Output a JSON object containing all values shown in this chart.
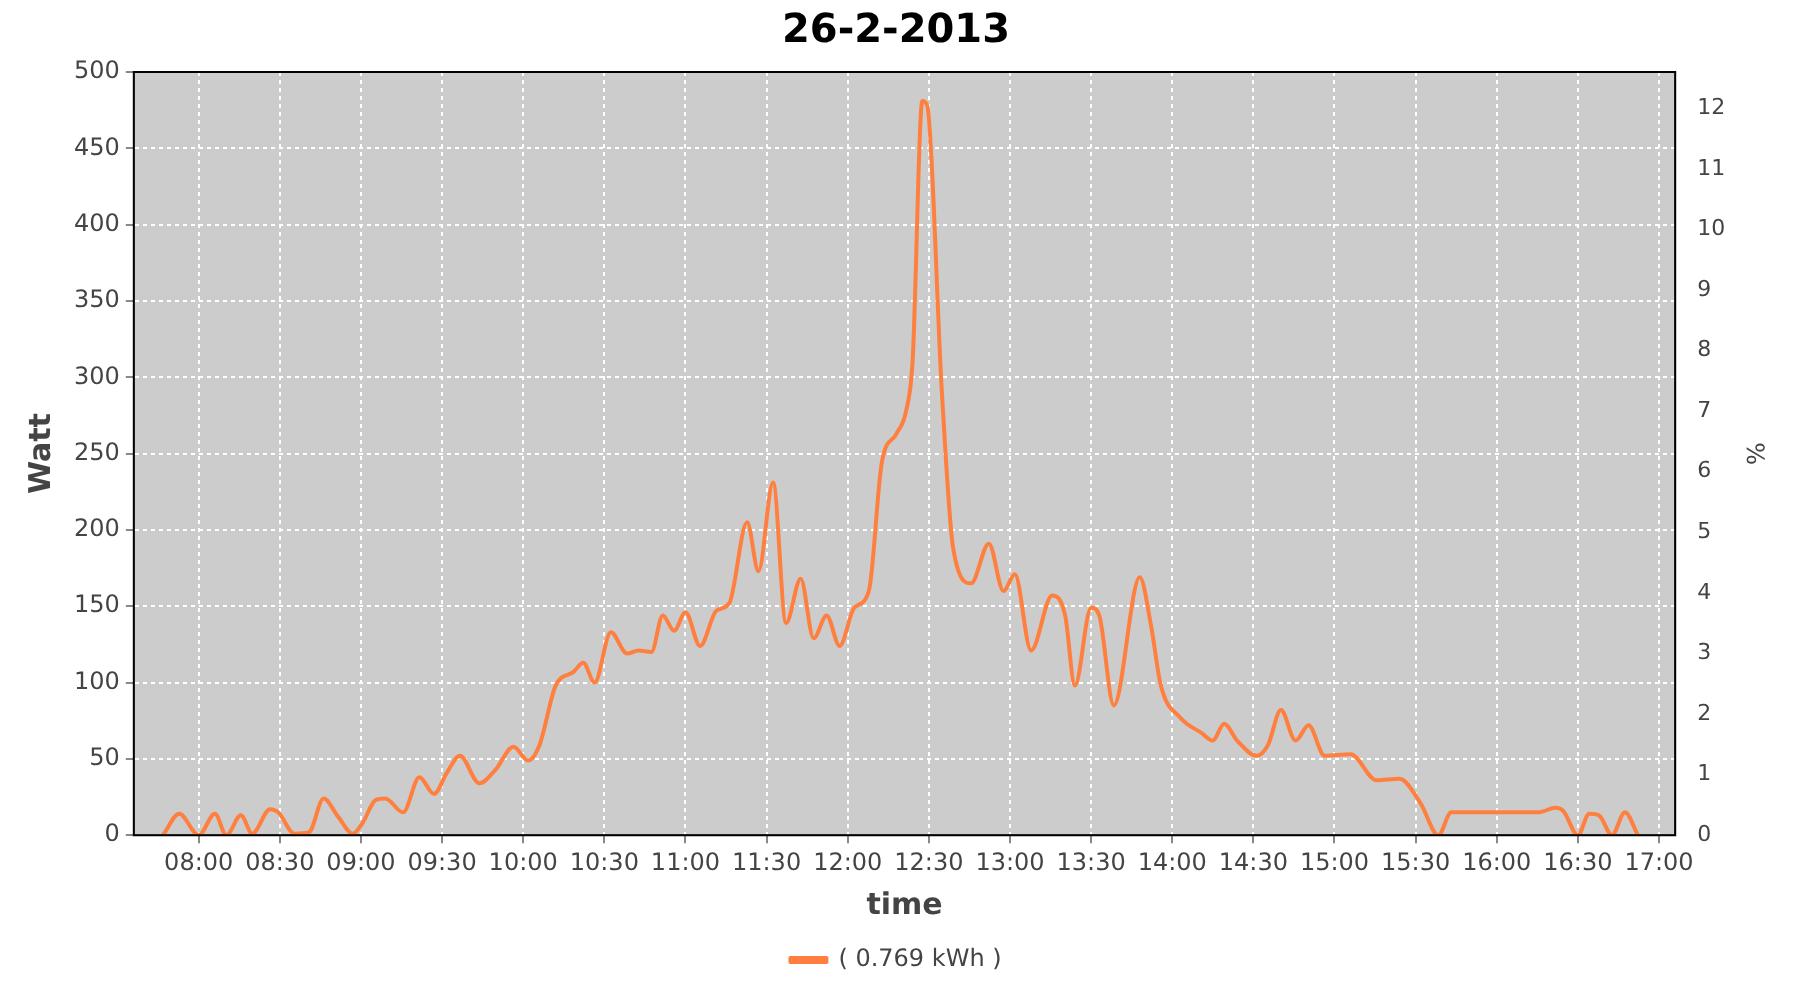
{
  "chart_data": {
    "type": "line",
    "title": "26-2-2013",
    "xlabel": "time",
    "ylabel": "Watt",
    "y2label": "%",
    "x": [
      7.78,
      7.88,
      8.0,
      8.1,
      8.17,
      8.26,
      8.33,
      8.44,
      8.49,
      8.59,
      8.68,
      8.77,
      8.86,
      8.95,
      9.01,
      9.09,
      9.15,
      9.26,
      9.36,
      9.45,
      9.53,
      9.61,
      9.73,
      9.83,
      9.94,
      10.03,
      10.1,
      10.2,
      10.31,
      10.37,
      10.44,
      10.54,
      10.64,
      10.71,
      10.79,
      10.86,
      10.93,
      11.0,
      11.09,
      11.19,
      11.27,
      11.38,
      11.45,
      11.54,
      11.62,
      11.71,
      11.79,
      11.87,
      11.95,
      12.04,
      12.13,
      12.21,
      12.3,
      12.36,
      12.4,
      12.46,
      12.49,
      12.58,
      12.65,
      12.76,
      12.87,
      12.96,
      13.03,
      13.13,
      13.26,
      13.34,
      13.4,
      13.5,
      13.55,
      13.64,
      13.8,
      13.87,
      13.93,
      14.05,
      14.18,
      14.25,
      14.32,
      14.4,
      14.52,
      14.59,
      14.67,
      14.76,
      14.84,
      14.94,
      15.1,
      15.26,
      15.4,
      15.53,
      15.64,
      15.72,
      15.77,
      16.26,
      16.36,
      16.41,
      16.5,
      16.57,
      16.63,
      16.71,
      16.79,
      16.87
    ],
    "series": [
      {
        "name": "( 0.769 kWh )",
        "color": "#ff7f3f",
        "values": [
          0,
          14,
          0,
          14,
          0,
          13,
          1,
          17,
          15,
          1,
          2,
          24,
          12,
          1,
          8,
          23,
          24,
          15,
          38,
          27,
          41,
          52,
          34,
          43,
          58,
          49,
          59,
          98,
          107,
          113,
          100,
          133,
          119,
          121,
          120,
          144,
          134,
          146,
          124,
          147,
          152,
          205,
          173,
          231,
          139,
          168,
          129,
          144,
          124,
          149,
          160,
          244,
          263,
          278,
          311,
          481,
          478,
          291,
          188,
          165,
          191,
          160,
          171,
          121,
          157,
          144,
          98,
          149,
          144,
          85,
          169,
          137,
          98,
          77,
          67,
          62,
          73,
          62,
          52,
          59,
          82,
          62,
          72,
          52,
          53,
          36,
          37,
          21,
          0,
          15,
          15,
          15,
          18,
          16,
          0,
          14,
          13,
          0,
          15,
          0
        ]
      }
    ],
    "xlim": [
      7.6,
      17.1
    ],
    "xticks": [
      {
        "value": 8,
        "label": "08:00"
      },
      {
        "value": 8.5,
        "label": "08:30"
      },
      {
        "value": 9,
        "label": "09:00"
      },
      {
        "value": 9.5,
        "label": "09:30"
      },
      {
        "value": 10,
        "label": "10:00"
      },
      {
        "value": 10.5,
        "label": "10:30"
      },
      {
        "value": 11,
        "label": "11:00"
      },
      {
        "value": 11.5,
        "label": "11:30"
      },
      {
        "value": 12,
        "label": "12:00"
      },
      {
        "value": 12.5,
        "label": "12:30"
      },
      {
        "value": 13,
        "label": "13:00"
      },
      {
        "value": 13.5,
        "label": "13:30"
      },
      {
        "value": 14,
        "label": "14:00"
      },
      {
        "value": 14.5,
        "label": "14:30"
      },
      {
        "value": 15,
        "label": "15:00"
      },
      {
        "value": 15.5,
        "label": "15:30"
      },
      {
        "value": 16,
        "label": "16:00"
      },
      {
        "value": 16.5,
        "label": "16:30"
      },
      {
        "value": 17,
        "label": "17:00"
      }
    ],
    "ylim": [
      0,
      500
    ],
    "yticks": [
      0,
      50,
      100,
      150,
      200,
      250,
      300,
      350,
      400,
      450,
      500
    ],
    "y2lim": [
      0,
      12.6
    ],
    "y2ticks": [
      0,
      1,
      2,
      3,
      4,
      5,
      6,
      7,
      8,
      9,
      10,
      11,
      12
    ],
    "grid": true,
    "legend": "bottom",
    "marker": "none",
    "line_style": "solid"
  }
}
